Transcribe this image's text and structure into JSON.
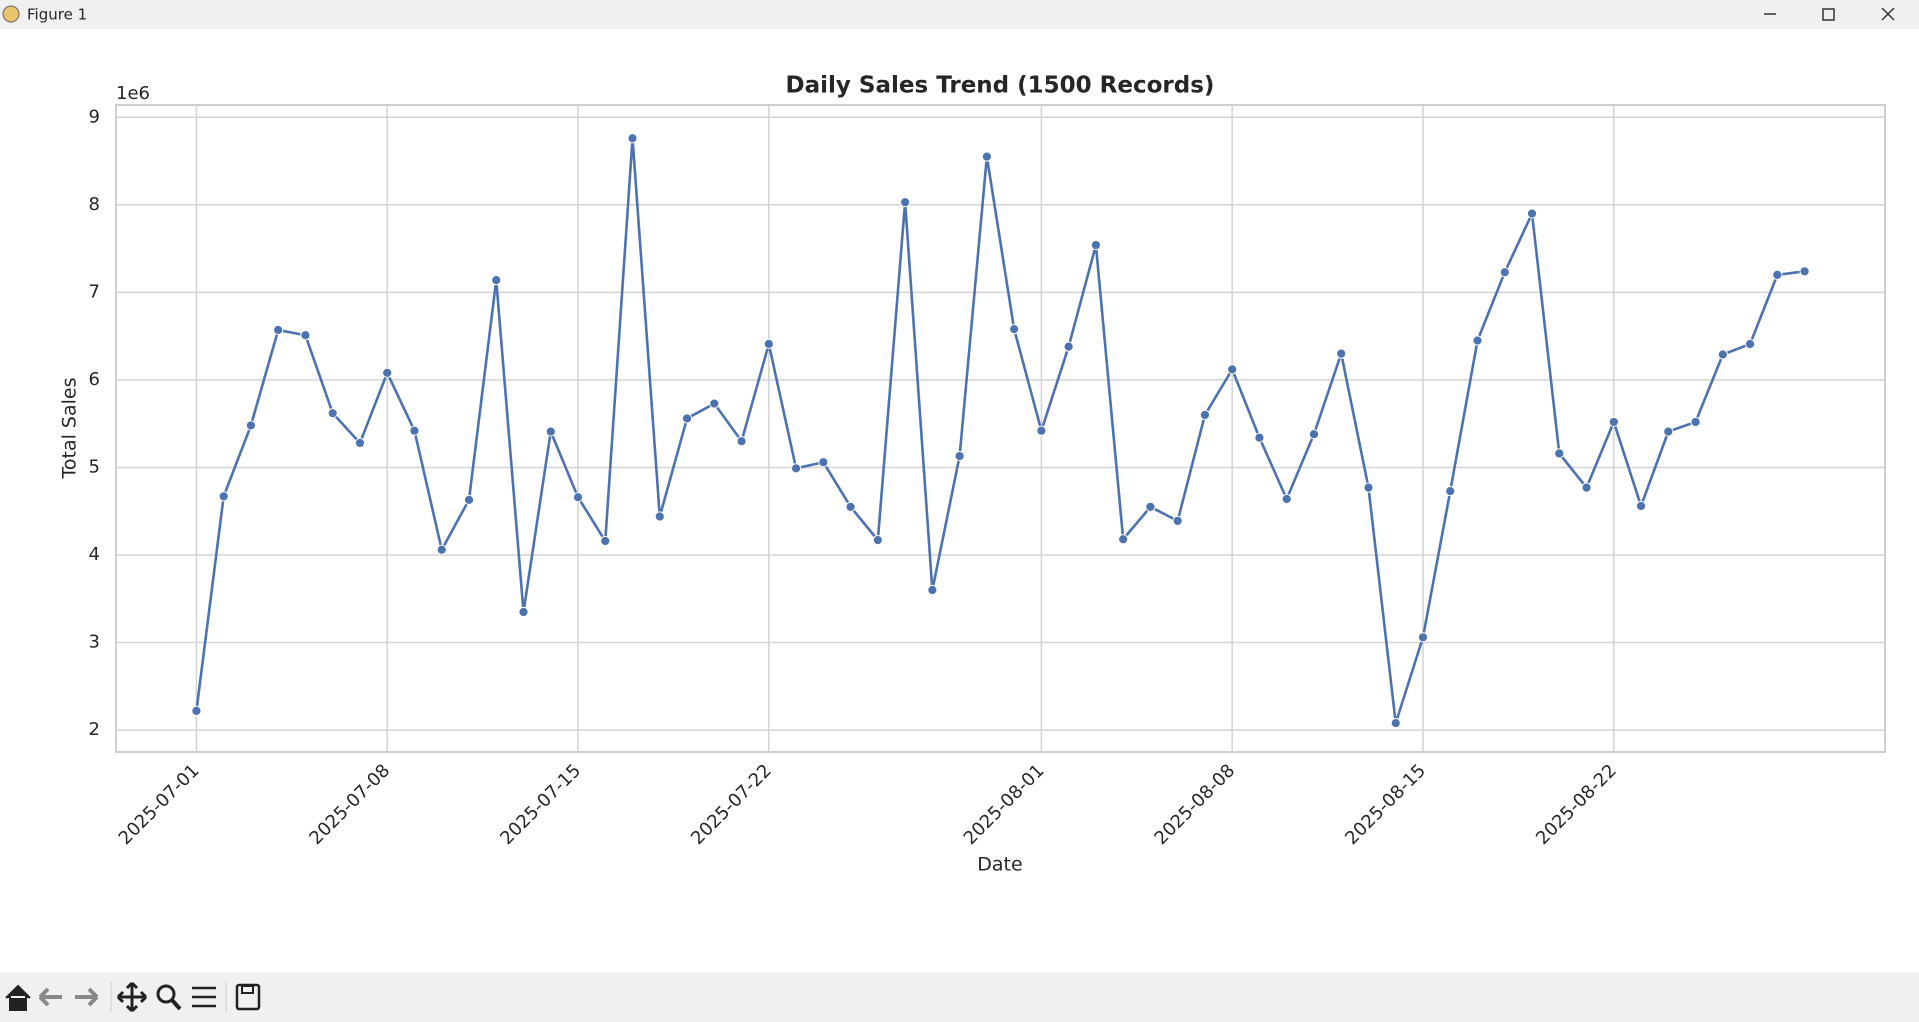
{
  "window": {
    "title": "Figure 1"
  },
  "chart_data": {
    "type": "line",
    "title": "Daily Sales Trend (1500 Records)",
    "x_label": "Date",
    "y_label": "Total Sales",
    "y_offset_label": "1e6",
    "x": [
      "2025-07-01",
      "2025-07-02",
      "2025-07-03",
      "2025-07-04",
      "2025-07-05",
      "2025-07-06",
      "2025-07-07",
      "2025-07-08",
      "2025-07-09",
      "2025-07-10",
      "2025-07-11",
      "2025-07-12",
      "2025-07-13",
      "2025-07-14",
      "2025-07-15",
      "2025-07-16",
      "2025-07-17",
      "2025-07-18",
      "2025-07-19",
      "2025-07-20",
      "2025-07-21",
      "2025-07-22",
      "2025-07-23",
      "2025-07-24",
      "2025-07-25",
      "2025-07-26",
      "2025-07-27",
      "2025-07-28",
      "2025-07-29",
      "2025-07-30",
      "2025-07-31",
      "2025-08-01",
      "2025-08-02",
      "2025-08-03",
      "2025-08-04",
      "2025-08-05",
      "2025-08-06",
      "2025-08-07",
      "2025-08-08",
      "2025-08-09",
      "2025-08-10",
      "2025-08-11",
      "2025-08-12",
      "2025-08-13",
      "2025-08-14",
      "2025-08-15",
      "2025-08-16",
      "2025-08-17",
      "2025-08-18",
      "2025-08-19",
      "2025-08-20",
      "2025-08-21",
      "2025-08-22",
      "2025-08-23",
      "2025-08-24",
      "2025-08-25",
      "2025-08-26",
      "2025-08-27",
      "2025-08-28",
      "2025-08-29"
    ],
    "series": [
      {
        "name": "Total Sales",
        "color": "#4c72b0",
        "values": [
          2220000,
          4670000,
          5480000,
          6570000,
          6510000,
          5620000,
          5280000,
          6080000,
          5420000,
          4060000,
          4630000,
          7140000,
          3350000,
          5410000,
          4660000,
          4160000,
          8760000,
          4440000,
          5560000,
          5730000,
          5300000,
          6410000,
          4990000,
          5060000,
          4550000,
          4170000,
          8030000,
          3600000,
          5130000,
          8550000,
          6580000,
          5420000,
          6380000,
          7540000,
          4180000,
          4550000,
          4390000,
          5600000,
          6120000,
          5340000,
          4640000,
          5380000,
          6300000,
          4770000,
          2080000,
          3060000,
          4730000,
          6450000,
          7230000,
          7900000,
          5160000,
          4770000,
          5520000,
          4560000,
          5410000,
          5520000,
          6290000,
          6410000,
          7200000,
          7240000
        ]
      }
    ],
    "xlim": [
      "2025-06-28T01:12",
      "2025-08-31T22:48"
    ],
    "xticks": [
      "2025-07-01",
      "2025-07-08",
      "2025-07-15",
      "2025-07-22",
      "2025-08-01",
      "2025-08-08",
      "2025-08-15",
      "2025-08-22"
    ],
    "ylim": [
      1750000,
      9140000
    ],
    "yticks": [
      {
        "value": 2000000,
        "label": "2"
      },
      {
        "value": 3000000,
        "label": "3"
      },
      {
        "value": 4000000,
        "label": "4"
      },
      {
        "value": 5000000,
        "label": "5"
      },
      {
        "value": 6000000,
        "label": "6"
      },
      {
        "value": 7000000,
        "label": "7"
      },
      {
        "value": 8000000,
        "label": "8"
      },
      {
        "value": 9000000,
        "label": "9"
      }
    ],
    "grid": true
  }
}
